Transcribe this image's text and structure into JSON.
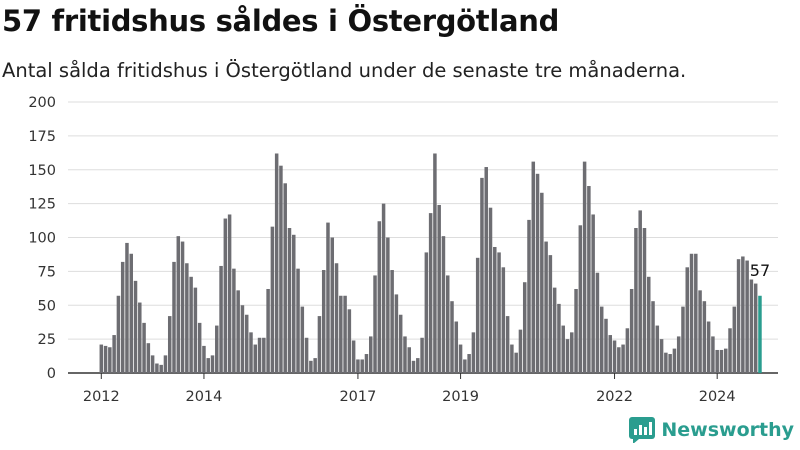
{
  "header": {
    "title": "57 fritidshus såldes i Östergötland",
    "subtitle": "Antal sålda fritidshus i Östergötland under de senaste tre månaderna."
  },
  "brand": {
    "name": "Newsworthy",
    "color": "#2a9d8f"
  },
  "colors": {
    "bar": "#6d6d72",
    "highlight": "#2a9d8f",
    "grid": "#dddddd"
  },
  "chart_data": {
    "type": "bar",
    "title": "",
    "xlabel": "",
    "ylabel": "",
    "ylim": [
      0,
      200
    ],
    "yticks": [
      0,
      25,
      50,
      75,
      100,
      125,
      150,
      175,
      200
    ],
    "xtick_labels": [
      {
        "label": "2012",
        "index": 0
      },
      {
        "label": "2014",
        "index": 24
      },
      {
        "label": "2017",
        "index": 60
      },
      {
        "label": "2019",
        "index": 84
      },
      {
        "label": "2022",
        "index": 120
      },
      {
        "label": "2024",
        "index": 144
      }
    ],
    "end_label": "57",
    "values": [
      21,
      20,
      19,
      28,
      57,
      82,
      96,
      88,
      68,
      52,
      37,
      22,
      13,
      7,
      6,
      13,
      42,
      82,
      101,
      97,
      81,
      71,
      63,
      37,
      20,
      11,
      13,
      35,
      79,
      114,
      117,
      77,
      61,
      50,
      43,
      30,
      21,
      26,
      26,
      62,
      108,
      162,
      153,
      140,
      107,
      102,
      77,
      49,
      26,
      9,
      11,
      42,
      76,
      111,
      100,
      81,
      57,
      57,
      47,
      24,
      10,
      10,
      14,
      27,
      72,
      112,
      125,
      100,
      76,
      58,
      43,
      27,
      19,
      9,
      11,
      26,
      89,
      118,
      162,
      124,
      101,
      72,
      53,
      38,
      21,
      10,
      14,
      30,
      85,
      144,
      152,
      122,
      93,
      89,
      78,
      42,
      21,
      15,
      32,
      67,
      113,
      156,
      147,
      133,
      97,
      87,
      63,
      51,
      35,
      25,
      30,
      62,
      109,
      156,
      138,
      117,
      74,
      49,
      40,
      28,
      24,
      19,
      21,
      33,
      62,
      107,
      120,
      107,
      71,
      53,
      35,
      25,
      15,
      14,
      18,
      27,
      49,
      78,
      88,
      88,
      61,
      53,
      38,
      27,
      17,
      17,
      18,
      33,
      49,
      84,
      86,
      83,
      69,
      66,
      57
    ]
  }
}
